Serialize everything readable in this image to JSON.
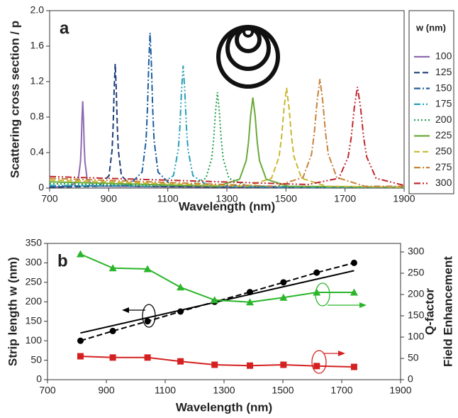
{
  "chart_data": [
    {
      "type": "line",
      "label": "a",
      "xlabel": "Wavelength (nm)",
      "ylabel": "Scattering cross section / p",
      "legend_title": "w (nm)",
      "xlim": [
        700,
        1900
      ],
      "xticks": [
        700,
        900,
        1100,
        1300,
        1500,
        1700,
        1900
      ],
      "ylim": [
        0,
        2
      ],
      "yticks": [
        0,
        0.4,
        0.8,
        1.2,
        1.6,
        {
          "value": 2,
          "label": "2.0"
        }
      ],
      "series": [
        {
          "name": "100",
          "color": "#8e6bb0",
          "style": "solid",
          "x": [
            700,
            772,
            797,
            804.5,
            807,
            809.5,
            812,
            814.5,
            817,
            819.5,
            827,
            852,
            1900
          ],
          "values": [
            0.01,
            0.02,
            0.1,
            0.3,
            0.49,
            0.78,
            0.98,
            0.78,
            0.49,
            0.3,
            0.1,
            0.02,
            0
          ]
        },
        {
          "name": "125",
          "color": "#1f3f7a",
          "style": "dashed",
          "x": [
            700,
            866,
            901,
            911.5,
            915,
            918.5,
            922,
            925.5,
            929,
            932.5,
            943,
            978,
            1900
          ],
          "values": [
            0.01,
            0.02,
            0.14,
            0.43,
            0.7,
            1.12,
            1.4,
            1.12,
            0.7,
            0.43,
            0.14,
            0.02,
            0
          ]
        },
        {
          "name": "150",
          "color": "#1f5fa0",
          "style": "dashdot",
          "x": [
            700,
            968,
            1013,
            1026.5,
            1031,
            1035.5,
            1040,
            1044.5,
            1049,
            1053.5,
            1067,
            1112,
            1900
          ],
          "values": [
            0.02,
            0.03,
            0.18,
            0.54,
            0.88,
            1.4,
            1.75,
            1.4,
            0.88,
            0.54,
            0.18,
            0.03,
            0
          ]
        },
        {
          "name": "175",
          "color": "#2aa0b8",
          "style": "dashdotdot",
          "x": [
            700,
            1064,
            1119,
            1135.5,
            1141,
            1146.5,
            1152,
            1157.5,
            1163,
            1168.5,
            1185,
            1240,
            1900
          ],
          "values": [
            0.03,
            0.02,
            0.14,
            0.43,
            0.69,
            1.1,
            1.38,
            1.1,
            0.69,
            0.43,
            0.14,
            0.02,
            0
          ]
        },
        {
          "name": "200",
          "color": "#1e9a4a",
          "style": "dotted",
          "x": [
            700,
            1164,
            1229,
            1248.5,
            1255,
            1261.5,
            1268,
            1274.5,
            1281,
            1287.5,
            1307,
            1372,
            1900
          ],
          "values": [
            0.05,
            0.02,
            0.11,
            0.33,
            0.54,
            0.86,
            1.08,
            0.86,
            0.54,
            0.33,
            0.11,
            0.02,
            0.01
          ]
        },
        {
          "name": "225",
          "color": "#6aaa3a",
          "style": "solid",
          "x": [
            700,
            1268,
            1343,
            1365.5,
            1373,
            1380.5,
            1388,
            1395.5,
            1403,
            1410.5,
            1433,
            1508,
            1900
          ],
          "values": [
            0.07,
            0.02,
            0.1,
            0.31,
            0.51,
            0.82,
            1.02,
            0.82,
            0.51,
            0.31,
            0.1,
            0.02,
            0.01
          ]
        },
        {
          "name": "250",
          "color": "#c8b830",
          "style": "dashed",
          "x": [
            700,
            1366,
            1451,
            1476.5,
            1485,
            1493.5,
            1502,
            1510.5,
            1519,
            1527.5,
            1553,
            1638,
            1900
          ],
          "values": [
            0.09,
            0.02,
            0.11,
            0.35,
            0.57,
            0.9,
            1.13,
            0.9,
            0.57,
            0.35,
            0.11,
            0.02,
            0.01
          ]
        },
        {
          "name": "275",
          "color": "#c8823a",
          "style": "dashdot",
          "x": [
            700,
            1463,
            1558,
            1586.5,
            1596,
            1605.5,
            1615,
            1624.5,
            1634,
            1643.5,
            1672,
            1767,
            1900
          ],
          "values": [
            0.11,
            0.02,
            0.12,
            0.38,
            0.62,
            0.98,
            1.23,
            0.98,
            0.62,
            0.38,
            0.12,
            0.02,
            0.02
          ]
        },
        {
          "name": "300",
          "color": "#c0272d",
          "style": "dashdotdot",
          "x": [
            700,
            1574,
            1679,
            1710.5,
            1721,
            1731.5,
            1742,
            1752.5,
            1763,
            1773.5,
            1805,
            1900
          ],
          "values": [
            0.13,
            0.04,
            0.11,
            0.35,
            0.57,
            0.91,
            1.14,
            0.91,
            0.57,
            0.35,
            0.11,
            0.03
          ]
        }
      ]
    },
    {
      "type": "line",
      "label": "b",
      "xlabel": "Wavelength (nm)",
      "ylabel": "Strip length w (nm)",
      "y2labels": [
        {
          "text": "Q-factor",
          "color": "#d42020"
        },
        {
          "text": "Field Enhancement",
          "color": "#2ab52a"
        }
      ],
      "xlim": [
        700,
        1900
      ],
      "xticks": [
        700,
        900,
        1100,
        1300,
        1500,
        1700,
        1900
      ],
      "ylim": [
        0,
        350
      ],
      "yticks": [
        0,
        50,
        100,
        150,
        200,
        250,
        300,
        350
      ],
      "y2lim": [
        0,
        320
      ],
      "y2ticks": [
        0,
        50,
        100,
        150,
        200,
        250,
        300
      ],
      "x": [
        812,
        922,
        1040,
        1152,
        1268,
        1388,
        1502,
        1615,
        1742
      ],
      "series": [
        {
          "color": "#000000",
          "style": "solid",
          "marker": "none",
          "x": [
            812,
            1742
          ],
          "values": [
            120,
            280
          ]
        },
        {
          "color": "#000000",
          "style": "dashed",
          "marker": "circle",
          "values": [
            100,
            125,
            150,
            175,
            200,
            225,
            250,
            275,
            300
          ]
        },
        {
          "color": "#2ab52a",
          "style": "solid",
          "marker": "triangle",
          "axis": "y2",
          "values": [
            295,
            262,
            260,
            217,
            187,
            182,
            193,
            205,
            205
          ]
        },
        {
          "color": "#d42020",
          "style": "solid",
          "marker": "square",
          "axis": "y2",
          "values": [
            55,
            52,
            52,
            43,
            35,
            33,
            35,
            32,
            30
          ]
        }
      ]
    }
  ]
}
